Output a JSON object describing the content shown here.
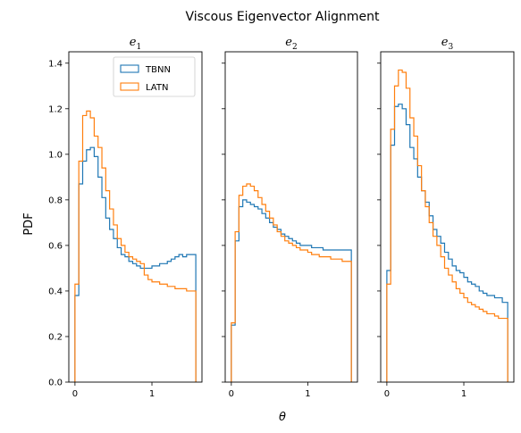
{
  "figure": {
    "title": "Viscous Eigenvector Alignment",
    "xlabel": "θ",
    "ylabel": "PDF"
  },
  "colors": {
    "TBNN": "#1f77b4",
    "LATN": "#ff7f0e"
  },
  "chart_data": [
    {
      "type": "step",
      "title": "e",
      "title_sub": "1",
      "xlim": [
        -0.08,
        1.65
      ],
      "ylim": [
        0,
        1.45
      ],
      "xticks": [
        0,
        1
      ],
      "yticks": [
        0.0,
        0.2,
        0.4,
        0.6,
        0.8,
        1.0,
        1.2,
        1.4
      ],
      "legend": {
        "placement": "top-right",
        "entries": [
          "TBNN",
          "LATN"
        ]
      },
      "bin_edges": [
        0.0,
        0.05,
        0.1,
        0.15,
        0.2,
        0.25,
        0.3,
        0.35,
        0.4,
        0.45,
        0.5,
        0.55,
        0.6,
        0.65,
        0.7,
        0.75,
        0.8,
        0.85,
        0.9,
        0.95,
        1.0,
        1.05,
        1.1,
        1.15,
        1.2,
        1.25,
        1.3,
        1.35,
        1.4,
        1.45,
        1.5,
        1.57
      ],
      "series": [
        {
          "name": "TBNN",
          "values": [
            0.38,
            0.87,
            0.97,
            1.02,
            1.03,
            0.99,
            0.9,
            0.81,
            0.72,
            0.67,
            0.63,
            0.59,
            0.56,
            0.55,
            0.53,
            0.52,
            0.51,
            0.5,
            0.5,
            0.5,
            0.51,
            0.51,
            0.52,
            0.52,
            0.53,
            0.54,
            0.55,
            0.56,
            0.55,
            0.56,
            0.56
          ]
        },
        {
          "name": "LATN",
          "values": [
            0.43,
            0.97,
            1.17,
            1.19,
            1.16,
            1.08,
            1.03,
            0.94,
            0.84,
            0.76,
            0.69,
            0.63,
            0.6,
            0.57,
            0.55,
            0.54,
            0.53,
            0.52,
            0.47,
            0.45,
            0.44,
            0.44,
            0.43,
            0.43,
            0.42,
            0.42,
            0.41,
            0.41,
            0.41,
            0.4,
            0.4
          ]
        }
      ]
    },
    {
      "type": "step",
      "title": "e",
      "title_sub": "2",
      "xlim": [
        -0.08,
        1.65
      ],
      "ylim": [
        0,
        1.45
      ],
      "xticks": [
        0,
        1
      ],
      "yticks": [
        0.0,
        0.2,
        0.4,
        0.6,
        0.8,
        1.0,
        1.2,
        1.4
      ],
      "bin_edges": [
        0.0,
        0.05,
        0.1,
        0.15,
        0.2,
        0.25,
        0.3,
        0.35,
        0.4,
        0.45,
        0.5,
        0.55,
        0.6,
        0.65,
        0.7,
        0.75,
        0.8,
        0.85,
        0.9,
        0.95,
        1.0,
        1.05,
        1.1,
        1.15,
        1.2,
        1.25,
        1.3,
        1.35,
        1.4,
        1.45,
        1.5,
        1.57
      ],
      "series": [
        {
          "name": "TBNN",
          "values": [
            0.25,
            0.62,
            0.77,
            0.8,
            0.79,
            0.78,
            0.77,
            0.76,
            0.74,
            0.72,
            0.7,
            0.68,
            0.67,
            0.65,
            0.64,
            0.63,
            0.62,
            0.61,
            0.6,
            0.6,
            0.6,
            0.59,
            0.59,
            0.59,
            0.58,
            0.58,
            0.58,
            0.58,
            0.58,
            0.58,
            0.58
          ]
        },
        {
          "name": "LATN",
          "values": [
            0.26,
            0.66,
            0.82,
            0.86,
            0.87,
            0.86,
            0.84,
            0.81,
            0.78,
            0.75,
            0.72,
            0.69,
            0.66,
            0.64,
            0.62,
            0.61,
            0.6,
            0.59,
            0.58,
            0.58,
            0.57,
            0.56,
            0.56,
            0.55,
            0.55,
            0.55,
            0.54,
            0.54,
            0.54,
            0.53,
            0.53
          ]
        }
      ]
    },
    {
      "type": "step",
      "title": "e",
      "title_sub": "3",
      "xlim": [
        -0.08,
        1.65
      ],
      "ylim": [
        0,
        1.45
      ],
      "xticks": [
        0,
        1
      ],
      "yticks": [
        0.0,
        0.2,
        0.4,
        0.6,
        0.8,
        1.0,
        1.2,
        1.4
      ],
      "bin_edges": [
        0.0,
        0.05,
        0.1,
        0.15,
        0.2,
        0.25,
        0.3,
        0.35,
        0.4,
        0.45,
        0.5,
        0.55,
        0.6,
        0.65,
        0.7,
        0.75,
        0.8,
        0.85,
        0.9,
        0.95,
        1.0,
        1.05,
        1.1,
        1.15,
        1.2,
        1.25,
        1.3,
        1.35,
        1.4,
        1.45,
        1.5,
        1.57
      ],
      "series": [
        {
          "name": "TBNN",
          "values": [
            0.49,
            1.04,
            1.21,
            1.22,
            1.2,
            1.13,
            1.03,
            0.98,
            0.9,
            0.84,
            0.79,
            0.73,
            0.67,
            0.64,
            0.61,
            0.57,
            0.54,
            0.51,
            0.49,
            0.48,
            0.46,
            0.44,
            0.43,
            0.42,
            0.4,
            0.39,
            0.38,
            0.38,
            0.37,
            0.37,
            0.35
          ]
        },
        {
          "name": "LATN",
          "values": [
            0.43,
            1.11,
            1.3,
            1.37,
            1.36,
            1.29,
            1.16,
            1.08,
            0.95,
            0.84,
            0.77,
            0.7,
            0.64,
            0.6,
            0.55,
            0.5,
            0.47,
            0.44,
            0.41,
            0.39,
            0.37,
            0.35,
            0.34,
            0.33,
            0.32,
            0.31,
            0.3,
            0.3,
            0.29,
            0.28,
            0.28
          ]
        }
      ]
    }
  ]
}
